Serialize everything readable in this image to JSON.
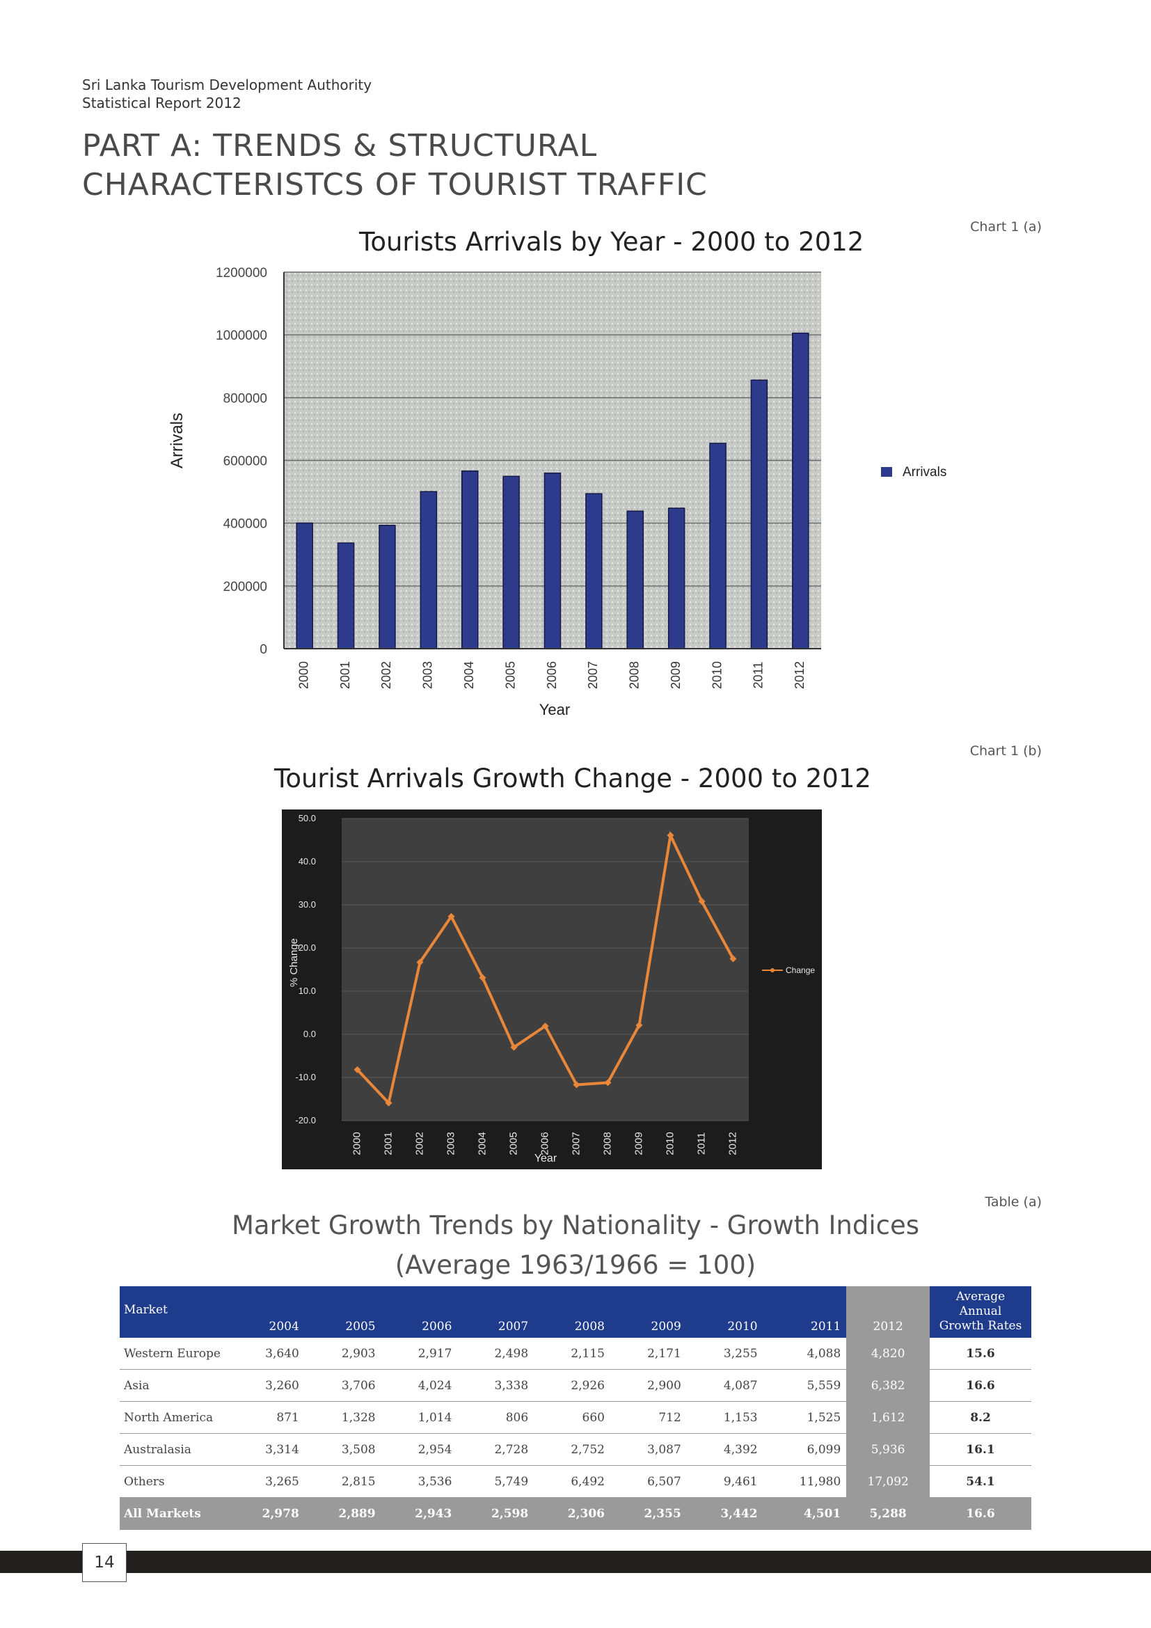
{
  "header": {
    "org": "Sri Lanka Tourism Development Authority",
    "report": "Statistical Report 2012",
    "part_line1": "PART A: TRENDS & STRUCTURAL",
    "part_line2": "CHARACTERISTCS OF TOURIST TRAFFIC"
  },
  "chart_data": [
    {
      "type": "bar",
      "caption": "Chart 1 (a)",
      "title": "Tourists Arrivals by Year - 2000 to 2012",
      "xlabel": "Year",
      "ylabel": "Arrivals",
      "categories": [
        "2000",
        "2001",
        "2002",
        "2003",
        "2004",
        "2005",
        "2006",
        "2007",
        "2008",
        "2009",
        "2010",
        "2011",
        "2012"
      ],
      "series": [
        {
          "name": "Arrivals",
          "values": [
            400414,
            336794,
            393171,
            500642,
            566202,
            549308,
            559603,
            494008,
            438475,
            447890,
            654476,
            855975,
            1005605
          ]
        }
      ],
      "ylim": [
        0,
        1200000
      ],
      "yticks": [
        0,
        200000,
        400000,
        600000,
        800000,
        1000000,
        1200000
      ],
      "grid": true,
      "legend": "right",
      "colors": {
        "bar": "#2e3a8c",
        "plot_bg": "#c7c9c7"
      }
    },
    {
      "type": "line",
      "caption": "Chart 1 (b)",
      "title": "Tourist Arrivals Growth Change - 2000 to 2012",
      "xlabel": "Year",
      "ylabel": "% Change",
      "categories": [
        "2000",
        "2001",
        "2002",
        "2003",
        "2004",
        "2005",
        "2006",
        "2007",
        "2008",
        "2009",
        "2010",
        "2011",
        "2012"
      ],
      "series": [
        {
          "name": "Change",
          "values": [
            -8.2,
            -15.9,
            16.7,
            27.3,
            13.1,
            -3.0,
            1.9,
            -11.7,
            -11.2,
            2.1,
            46.1,
            30.8,
            17.5
          ]
        }
      ],
      "ylim": [
        -20,
        50
      ],
      "yticks": [
        "-20.0",
        "-10.0",
        "0.0",
        "10.0",
        "20.0",
        "30.0",
        "40.0",
        "50.0"
      ],
      "grid": true,
      "legend": "right",
      "colors": {
        "line": "#e8873a",
        "plot_bg": "#3f3f3f",
        "frame": "#1c1c1c"
      }
    }
  ],
  "table": {
    "caption": "Table (a)",
    "title_line1": "Market Growth Trends by Nationality - Growth Indices",
    "title_line2": "(Average 1963/1966 = 100)",
    "headers": {
      "market": "Market",
      "years": [
        "2004",
        "2005",
        "2006",
        "2007",
        "2008",
        "2009",
        "2010",
        "2011",
        "2012"
      ],
      "avg_line1": "Average Annual",
      "avg_line2": "Growth Rates"
    },
    "rows": [
      {
        "market": "Western Europe",
        "values": [
          "3,640",
          "2,903",
          "2,917",
          "2,498",
          "2,115",
          "2,171",
          "3,255",
          "4,088",
          "4,820"
        ],
        "avg": "15.6"
      },
      {
        "market": "Asia",
        "values": [
          "3,260",
          "3,706",
          "4,024",
          "3,338",
          "2,926",
          "2,900",
          "4,087",
          "5,559",
          "6,382"
        ],
        "avg": "16.6"
      },
      {
        "market": "North America",
        "values": [
          "871",
          "1,328",
          "1,014",
          "806",
          "660",
          "712",
          "1,153",
          "1,525",
          "1,612"
        ],
        "avg": "8.2"
      },
      {
        "market": "Australasia",
        "values": [
          "3,314",
          "3,508",
          "2,954",
          "2,728",
          "2,752",
          "3,087",
          "4,392",
          "6,099",
          "5,936"
        ],
        "avg": "16.1"
      },
      {
        "market": "Others",
        "values": [
          "3,265",
          "2,815",
          "3,536",
          "5,749",
          "6,492",
          "6,507",
          "9,461",
          "11,980",
          "17,092"
        ],
        "avg": "54.1"
      }
    ],
    "total": {
      "market": "All Markets",
      "values": [
        "2,978",
        "2,889",
        "2,943",
        "2,598",
        "2,306",
        "2,355",
        "3,442",
        "4,501",
        "5,288"
      ],
      "avg": "16.6"
    }
  },
  "footer": {
    "page_number": "14"
  }
}
